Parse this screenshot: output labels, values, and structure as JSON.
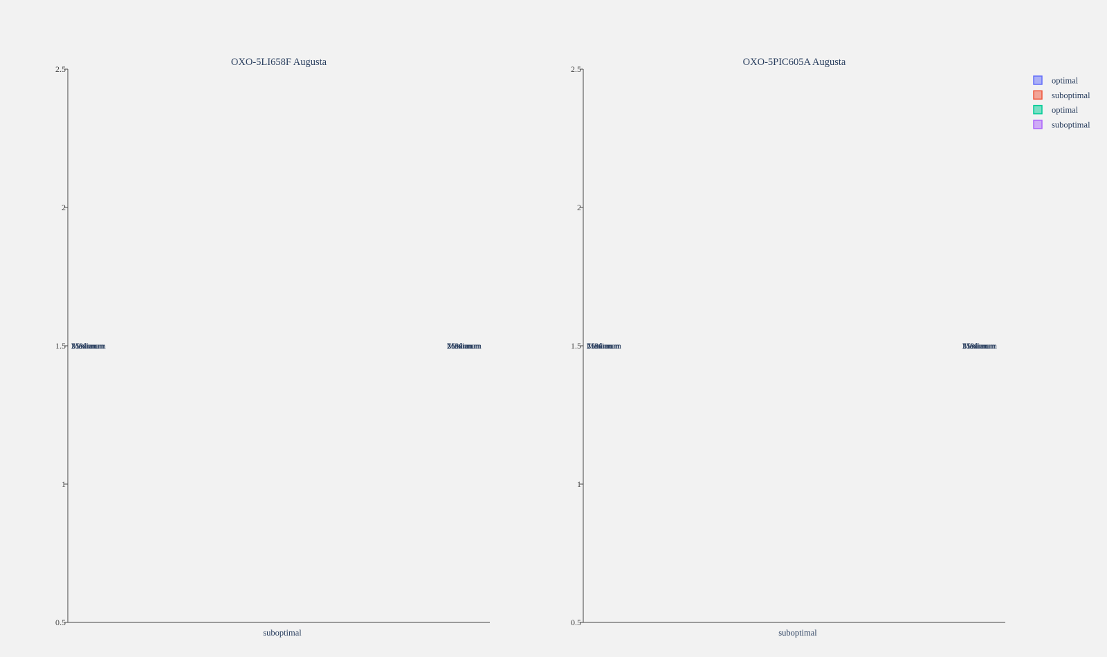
{
  "chart_data": [
    {
      "type": "box",
      "title": "OXO-5LI658F Augusta",
      "categories": [
        "suboptimal"
      ],
      "ylim": [
        0.5,
        2.5
      ],
      "yticks": [
        "0.5",
        "1",
        "1.5",
        "2",
        "2.5"
      ],
      "annotations": [
        {
          "text": "Maximum",
          "x_pos": "left",
          "y": 1.5
        },
        {
          "text": "75%",
          "x_pos": "left",
          "y": 1.5
        },
        {
          "text": "Median",
          "x_pos": "left",
          "y": 1.5
        },
        {
          "text": "25%",
          "x_pos": "left",
          "y": 1.5
        },
        {
          "text": "Minimum",
          "x_pos": "left",
          "y": 1.5
        },
        {
          "text": "Maximum",
          "x_pos": "right",
          "y": 1.5
        },
        {
          "text": "75%",
          "x_pos": "right",
          "y": 1.5
        },
        {
          "text": "Median",
          "x_pos": "right",
          "y": 1.5
        },
        {
          "text": "25%",
          "x_pos": "right",
          "y": 1.5
        },
        {
          "text": "Minimum",
          "x_pos": "right",
          "y": 1.5
        }
      ]
    },
    {
      "type": "box",
      "title": "OXO-5PIC605A Augusta",
      "categories": [
        "suboptimal"
      ],
      "ylim": [
        0.5,
        2.5
      ],
      "yticks": [
        "0.5",
        "1",
        "1.5",
        "2",
        "2.5"
      ],
      "annotations": [
        {
          "text": "Maximum",
          "x_pos": "left",
          "y": 1.5
        },
        {
          "text": "75%",
          "x_pos": "left",
          "y": 1.5
        },
        {
          "text": "Median",
          "x_pos": "left",
          "y": 1.5
        },
        {
          "text": "25%",
          "x_pos": "left",
          "y": 1.5
        },
        {
          "text": "Minimum",
          "x_pos": "left",
          "y": 1.5
        },
        {
          "text": "Maximum",
          "x_pos": "right",
          "y": 1.5
        },
        {
          "text": "75%",
          "x_pos": "right",
          "y": 1.5
        },
        {
          "text": "Median",
          "x_pos": "right",
          "y": 1.5
        },
        {
          "text": "25%",
          "x_pos": "right",
          "y": 1.5
        },
        {
          "text": "Minimum",
          "x_pos": "right",
          "y": 1.5
        }
      ]
    }
  ],
  "legend": {
    "placement": "top-right",
    "items": [
      {
        "name": "optimal",
        "color": "#636efa"
      },
      {
        "name": "suboptimal",
        "color": "#ef553b"
      },
      {
        "name": "optimal",
        "color": "#00cc96"
      },
      {
        "name": "suboptimal",
        "color": "#ab63fa"
      }
    ]
  },
  "colors": {
    "background": "#f2f2f2",
    "axis_line": "#444444",
    "text": "#2a3f5f"
  }
}
